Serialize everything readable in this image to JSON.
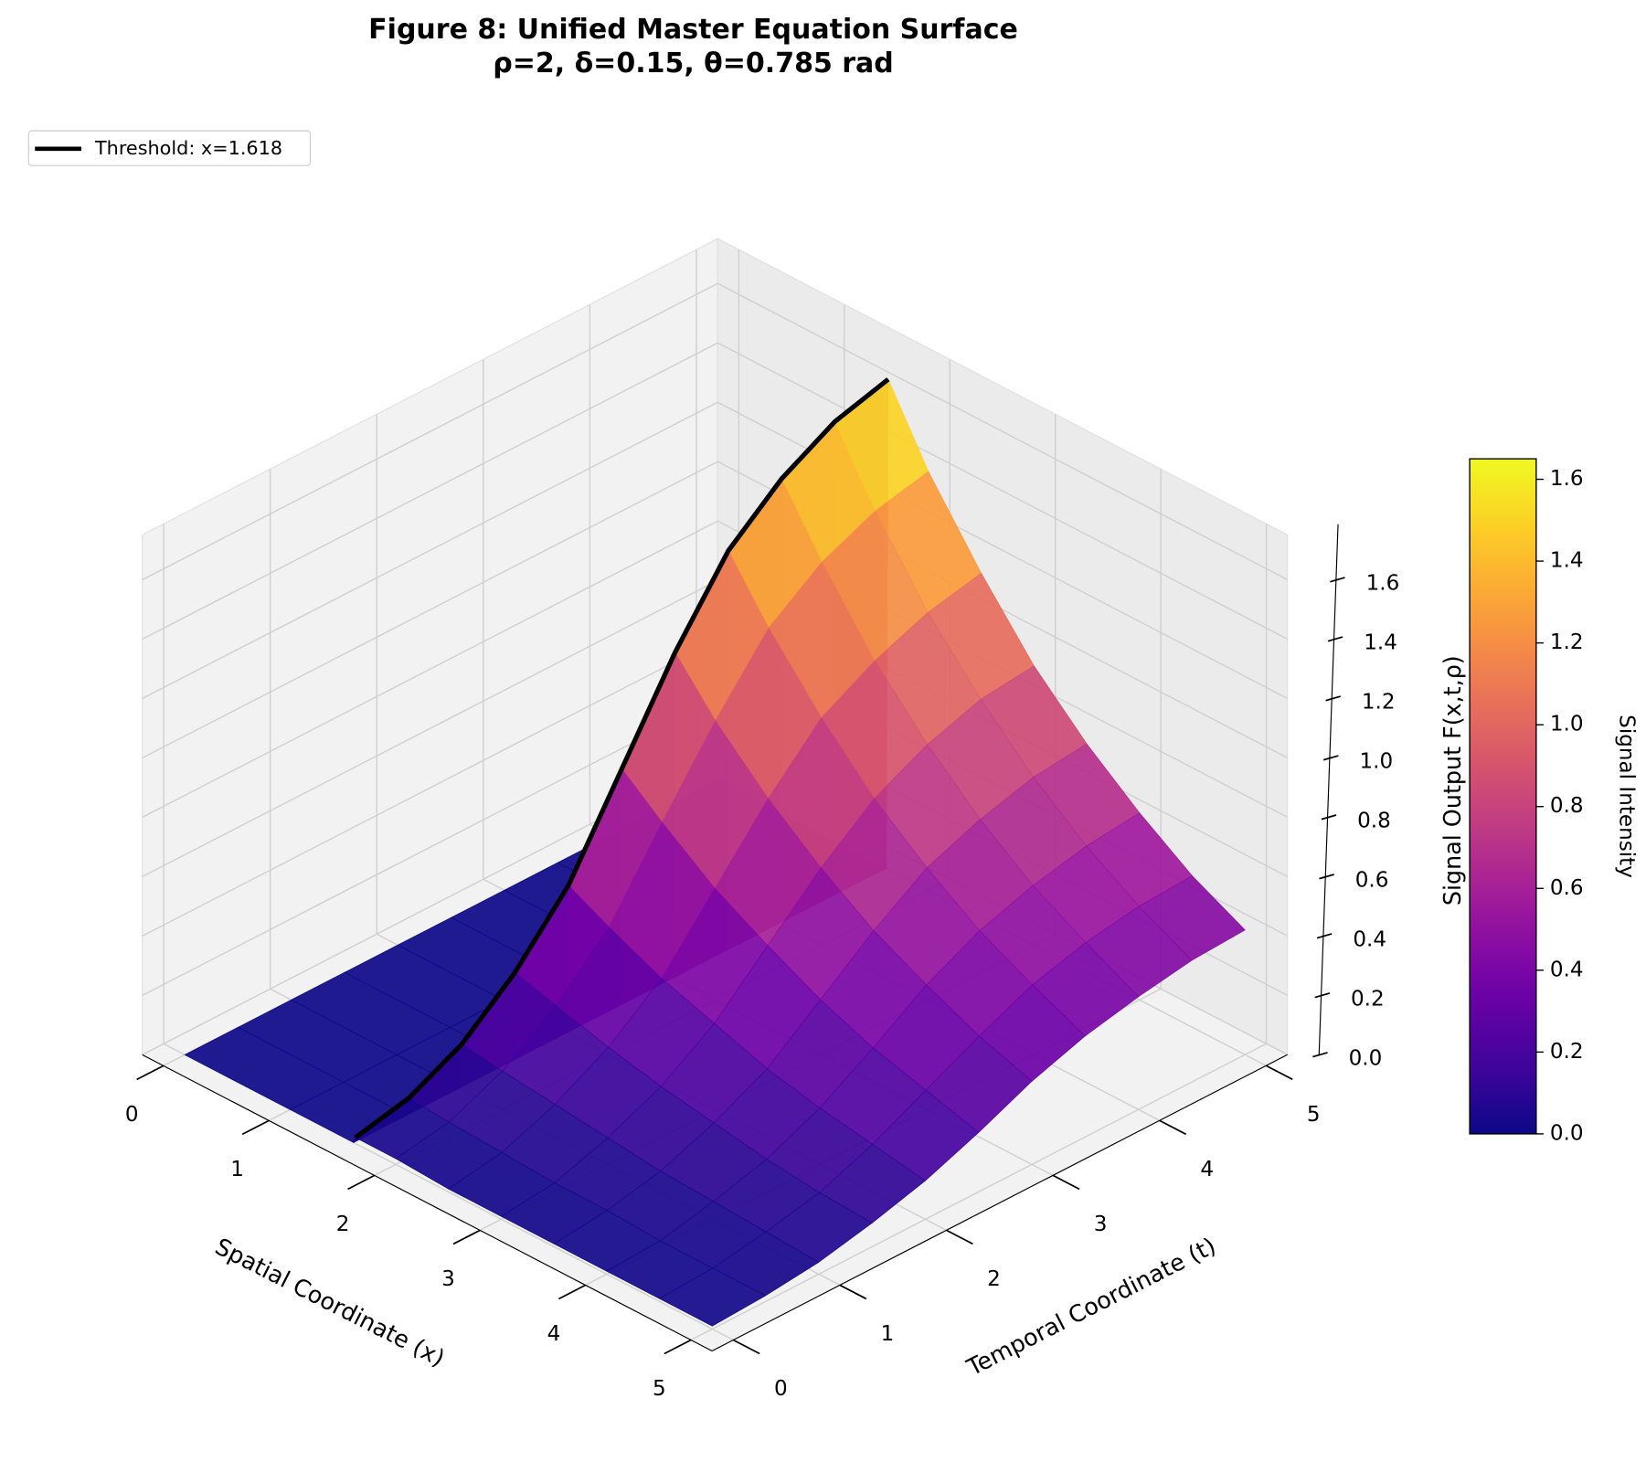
{
  "chart_data": {
    "type": "surface",
    "title": "Figure 8: Unified Master Equation Surface",
    "subtitle": "ρ=2, δ=0.15, θ=0.785 rad",
    "xlabel": "Spatial Coordinate (x)",
    "ylabel": "Temporal Coordinate (t)",
    "zlabel": "Signal Output F(x,t,ρ)",
    "colorbar_label": "Signal Intensity",
    "colormap": "plasma",
    "x": [
      0,
      1,
      1.6,
      1.618,
      2,
      2.5,
      3,
      3.5,
      4,
      4.5,
      5
    ],
    "y": [
      0,
      0.5,
      1,
      1.5,
      2,
      2.5,
      3,
      3.5,
      4,
      4.5,
      5
    ],
    "z": [
      [
        0,
        0,
        0,
        0,
        0,
        0,
        0,
        0,
        0,
        0,
        0
      ],
      [
        0,
        0,
        0,
        0,
        0,
        0,
        0,
        0,
        0,
        0,
        0
      ],
      [
        0,
        0,
        0,
        0,
        0,
        0,
        0,
        0,
        0,
        0,
        0
      ],
      [
        0.02,
        0.06,
        0.15,
        0.3,
        0.5,
        0.8,
        1.1,
        1.35,
        1.5,
        1.6,
        1.65
      ],
      [
        0.02,
        0.05,
        0.13,
        0.26,
        0.43,
        0.69,
        0.94,
        1.16,
        1.29,
        1.37,
        1.41
      ],
      [
        0.01,
        0.04,
        0.11,
        0.21,
        0.35,
        0.56,
        0.77,
        0.95,
        1.05,
        1.12,
        1.16
      ],
      [
        0.01,
        0.03,
        0.09,
        0.17,
        0.29,
        0.46,
        0.63,
        0.77,
        0.86,
        0.92,
        0.94
      ],
      [
        0.01,
        0.03,
        0.07,
        0.14,
        0.23,
        0.37,
        0.51,
        0.63,
        0.7,
        0.75,
        0.77
      ],
      [
        0.01,
        0.02,
        0.06,
        0.11,
        0.19,
        0.3,
        0.42,
        0.51,
        0.57,
        0.61,
        0.63
      ],
      [
        0.01,
        0.02,
        0.05,
        0.09,
        0.16,
        0.25,
        0.34,
        0.42,
        0.47,
        0.5,
        0.51
      ],
      [
        0.01,
        0.02,
        0.04,
        0.08,
        0.13,
        0.2,
        0.28,
        0.34,
        0.38,
        0.41,
        0.42
      ]
    ],
    "xlim": [
      0,
      5
    ],
    "ylim": [
      0,
      5
    ],
    "zlim": [
      0,
      1.7
    ],
    "xticks": [
      0,
      1,
      2,
      3,
      4,
      5
    ],
    "yticks": [
      0,
      1,
      2,
      3,
      4,
      5
    ],
    "zticks": [
      {
        "value": 0,
        "label": "0.0"
      },
      0.2,
      0.4,
      0.6,
      0.8,
      {
        "value": 1,
        "label": "1.0"
      },
      1.2,
      1.4,
      1.6
    ],
    "clim": [
      0,
      1.65
    ],
    "colorbar_ticks": [
      {
        "value": 0,
        "label": "0.0"
      },
      0.2,
      0.4,
      0.6,
      0.8,
      {
        "value": 1,
        "label": "1.0"
      },
      1.2,
      1.4,
      1.6
    ],
    "threshold": {
      "name": "Threshold: x=1.618",
      "x": 1.618,
      "color": "#000000"
    },
    "legend": "upper left",
    "grid": true
  }
}
